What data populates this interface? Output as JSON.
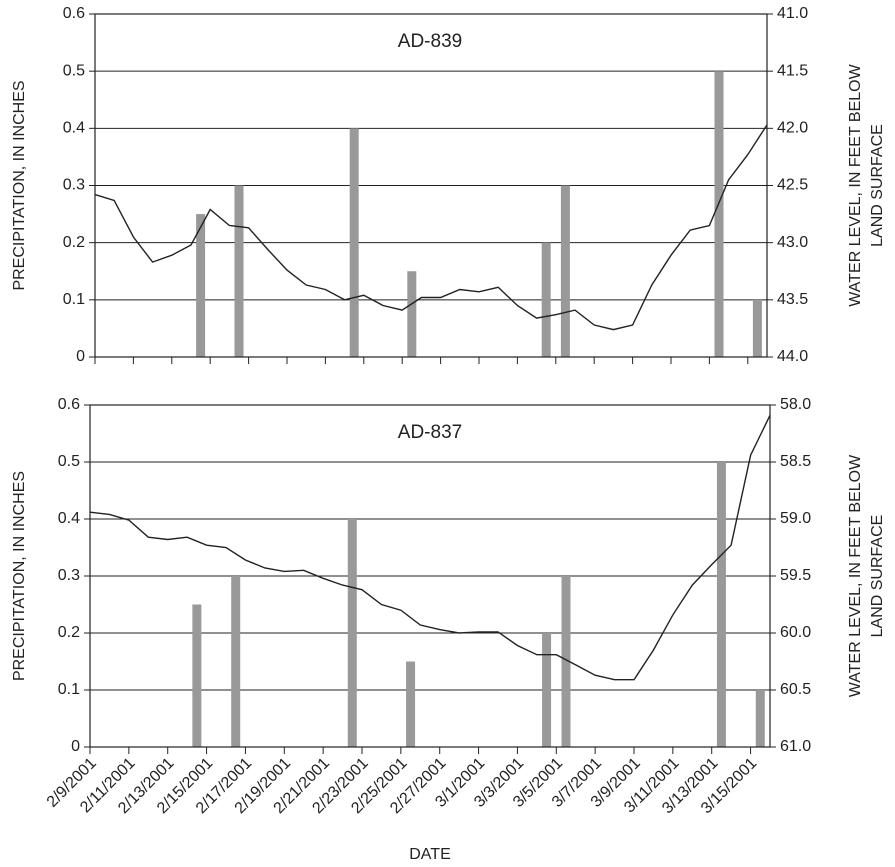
{
  "chart_data": [
    {
      "type": "combo",
      "title": "AD-839",
      "ylabel": "PRECIPITATION, IN INCHES",
      "y2label": [
        "WATER LEVEL, IN FEET BELOW",
        "LAND SURFACE"
      ],
      "xlim": [
        0,
        35
      ],
      "xticks": [
        0,
        2,
        4,
        6,
        8,
        10,
        12,
        14,
        16,
        18,
        20,
        22,
        24,
        26,
        28,
        30,
        32,
        34
      ],
      "xtick_labels": false,
      "ylim": [
        0,
        0.6
      ],
      "yticks": [
        0,
        0.1,
        0.2,
        0.3,
        0.4,
        0.5,
        0.6
      ],
      "y2lim": [
        44,
        41
      ],
      "y2ticks": [
        {
          "value": 41,
          "label": "41.0"
        },
        41.5,
        {
          "value": 42,
          "label": "42.0"
        },
        42.5,
        {
          "value": 43,
          "label": "43.0"
        },
        43.5,
        {
          "value": 44,
          "label": "44.0"
        }
      ],
      "grid": true,
      "series": [
        {
          "type": "bar",
          "color": "#999999",
          "x": [
            5,
            7,
            13,
            16,
            23,
            24,
            32,
            34
          ],
          "values": [
            0.25,
            0.3,
            0.4,
            0.15,
            0.2,
            0.3,
            0.5,
            0.1
          ]
        },
        {
          "type": "line",
          "axis": "y2",
          "color": "#222222",
          "x": [
            0,
            1,
            2,
            3,
            4,
            5,
            6,
            7,
            8,
            9,
            10,
            11,
            12,
            13,
            14,
            15,
            16,
            17,
            18,
            19,
            20,
            21,
            22,
            23,
            24,
            25,
            26,
            27,
            28,
            29,
            30,
            31,
            32,
            33,
            34,
            35
          ],
          "values": [
            42.58,
            42.63,
            42.95,
            43.17,
            43.11,
            43.02,
            42.71,
            42.85,
            42.87,
            43.06,
            43.24,
            43.37,
            43.41,
            43.5,
            43.46,
            43.55,
            43.59,
            43.48,
            43.48,
            43.41,
            43.43,
            43.39,
            43.55,
            43.66,
            43.63,
            43.59,
            43.72,
            43.76,
            43.72,
            43.37,
            43.11,
            42.89,
            42.85,
            42.45,
            42.23,
            41.97
          ]
        }
      ]
    },
    {
      "type": "combo",
      "title": "AD-837",
      "ylabel": "PRECIPITATION, IN INCHES",
      "y2label": [
        "WATER LEVEL, IN FEET BELOW",
        "LAND SURFACE"
      ],
      "xlabel": "DATE",
      "xlim": [
        0,
        35
      ],
      "xticks": [
        {
          "value": 0,
          "label": "2/9/2001"
        },
        {
          "value": 2,
          "label": "2/11/2001"
        },
        {
          "value": 4,
          "label": "2/13/2001"
        },
        {
          "value": 6,
          "label": "2/15/2001"
        },
        {
          "value": 8,
          "label": "2/17/2001"
        },
        {
          "value": 10,
          "label": "2/19/2001"
        },
        {
          "value": 12,
          "label": "2/21/2001"
        },
        {
          "value": 14,
          "label": "2/23/2001"
        },
        {
          "value": 16,
          "label": "2/25/2001"
        },
        {
          "value": 18,
          "label": "2/27/2001"
        },
        {
          "value": 20,
          "label": "3/1/2001"
        },
        {
          "value": 22,
          "label": "3/3/2001"
        },
        {
          "value": 24,
          "label": "3/5/2001"
        },
        {
          "value": 26,
          "label": "3/7/2001"
        },
        {
          "value": 28,
          "label": "3/9/2001"
        },
        {
          "value": 30,
          "label": "3/11/2001"
        },
        {
          "value": 32,
          "label": "3/13/2001"
        },
        {
          "value": 34,
          "label": "3/15/2001"
        }
      ],
      "xtick_labels": true,
      "ylim": [
        0,
        0.6
      ],
      "yticks": [
        0,
        0.1,
        0.2,
        0.3,
        0.4,
        0.5,
        0.6
      ],
      "y2lim": [
        61,
        58
      ],
      "y2ticks": [
        {
          "value": 58,
          "label": "58.0"
        },
        58.5,
        {
          "value": 59,
          "label": "59.0"
        },
        59.5,
        {
          "value": 60,
          "label": "60.0"
        },
        60.5,
        {
          "value": 61,
          "label": "61.0"
        }
      ],
      "grid": true,
      "series": [
        {
          "type": "bar",
          "color": "#999999",
          "x": [
            5,
            7,
            13,
            16,
            23,
            24,
            32,
            34
          ],
          "values": [
            0.25,
            0.3,
            0.4,
            0.15,
            0.2,
            0.3,
            0.5,
            0.1
          ]
        },
        {
          "type": "line",
          "axis": "y2",
          "color": "#222222",
          "x": [
            0,
            1,
            2,
            3,
            4,
            5,
            6,
            7,
            8,
            9,
            10,
            11,
            12,
            13,
            14,
            15,
            16,
            17,
            18,
            19,
            20,
            21,
            22,
            23,
            24,
            25,
            26,
            27,
            28,
            29,
            30,
            31,
            32,
            33,
            34,
            35
          ],
          "values": [
            58.94,
            58.96,
            59.01,
            59.16,
            59.18,
            59.16,
            59.23,
            59.25,
            59.36,
            59.43,
            59.46,
            59.45,
            59.52,
            59.58,
            59.62,
            59.75,
            59.8,
            59.93,
            59.97,
            60.0,
            59.99,
            59.99,
            60.11,
            60.19,
            60.19,
            60.28,
            60.37,
            60.41,
            60.41,
            60.15,
            59.84,
            59.58,
            59.4,
            59.23,
            58.44,
            58.09
          ]
        }
      ]
    }
  ]
}
